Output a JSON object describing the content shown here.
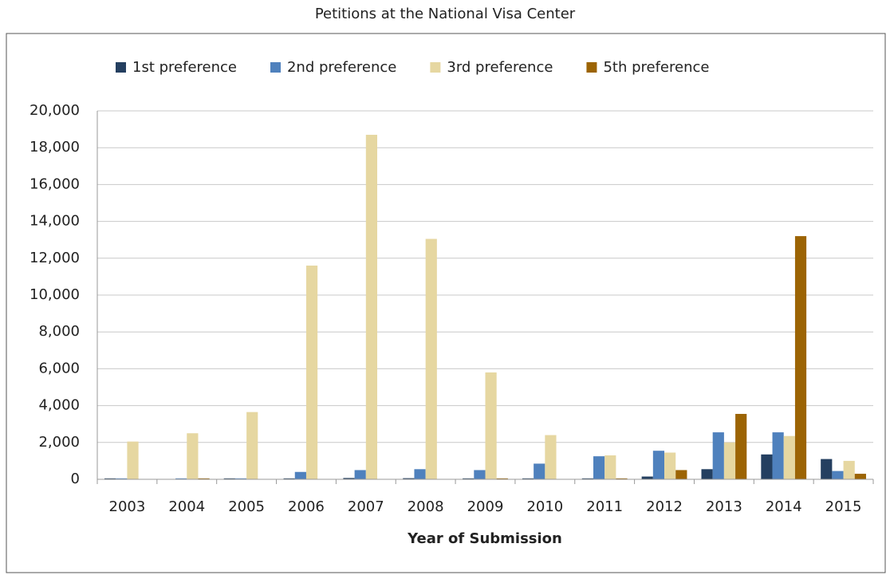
{
  "chart_data": {
    "type": "bar",
    "title": "Petitions at the National Visa Center",
    "x_label": "Year of Submission",
    "categories": [
      "2003",
      "2004",
      "2005",
      "2006",
      "2007",
      "2008",
      "2009",
      "2010",
      "2011",
      "2012",
      "2013",
      "2014",
      "2015"
    ],
    "series": [
      {
        "name": "1st preference",
        "color": "#243f60",
        "values": [
          50,
          20,
          50,
          50,
          70,
          60,
          50,
          50,
          50,
          150,
          550,
          1350,
          1100
        ]
      },
      {
        "name": "2nd preference",
        "color": "#4f81bd",
        "values": [
          50,
          50,
          50,
          400,
          500,
          550,
          500,
          850,
          1250,
          1550,
          2550,
          2550,
          450
        ]
      },
      {
        "name": "3rd preference",
        "color": "#e6d7a1",
        "values": [
          2050,
          2500,
          3650,
          11600,
          18700,
          13050,
          5800,
          2400,
          1300,
          1450,
          2000,
          2350,
          1000
        ]
      },
      {
        "name": "5th preference",
        "color": "#9c6404",
        "values": [
          0,
          50,
          0,
          0,
          0,
          0,
          50,
          0,
          50,
          500,
          3550,
          13200,
          300
        ]
      }
    ],
    "ylim": [
      0,
      20000
    ],
    "yticks": [
      0,
      {
        "value": 2000,
        "label": "2,000"
      },
      {
        "value": 4000,
        "label": "4,000"
      },
      {
        "value": 6000,
        "label": "6,000"
      },
      {
        "value": 8000,
        "label": "8,000"
      },
      {
        "value": 10000,
        "label": "10,000"
      },
      {
        "value": 12000,
        "label": "12,000"
      },
      {
        "value": 14000,
        "label": "14,000"
      },
      {
        "value": 16000,
        "label": "16,000"
      },
      {
        "value": 18000,
        "label": "18,000"
      },
      {
        "value": 20000,
        "label": "20,000"
      }
    ],
    "grid": true,
    "legend": "top"
  }
}
